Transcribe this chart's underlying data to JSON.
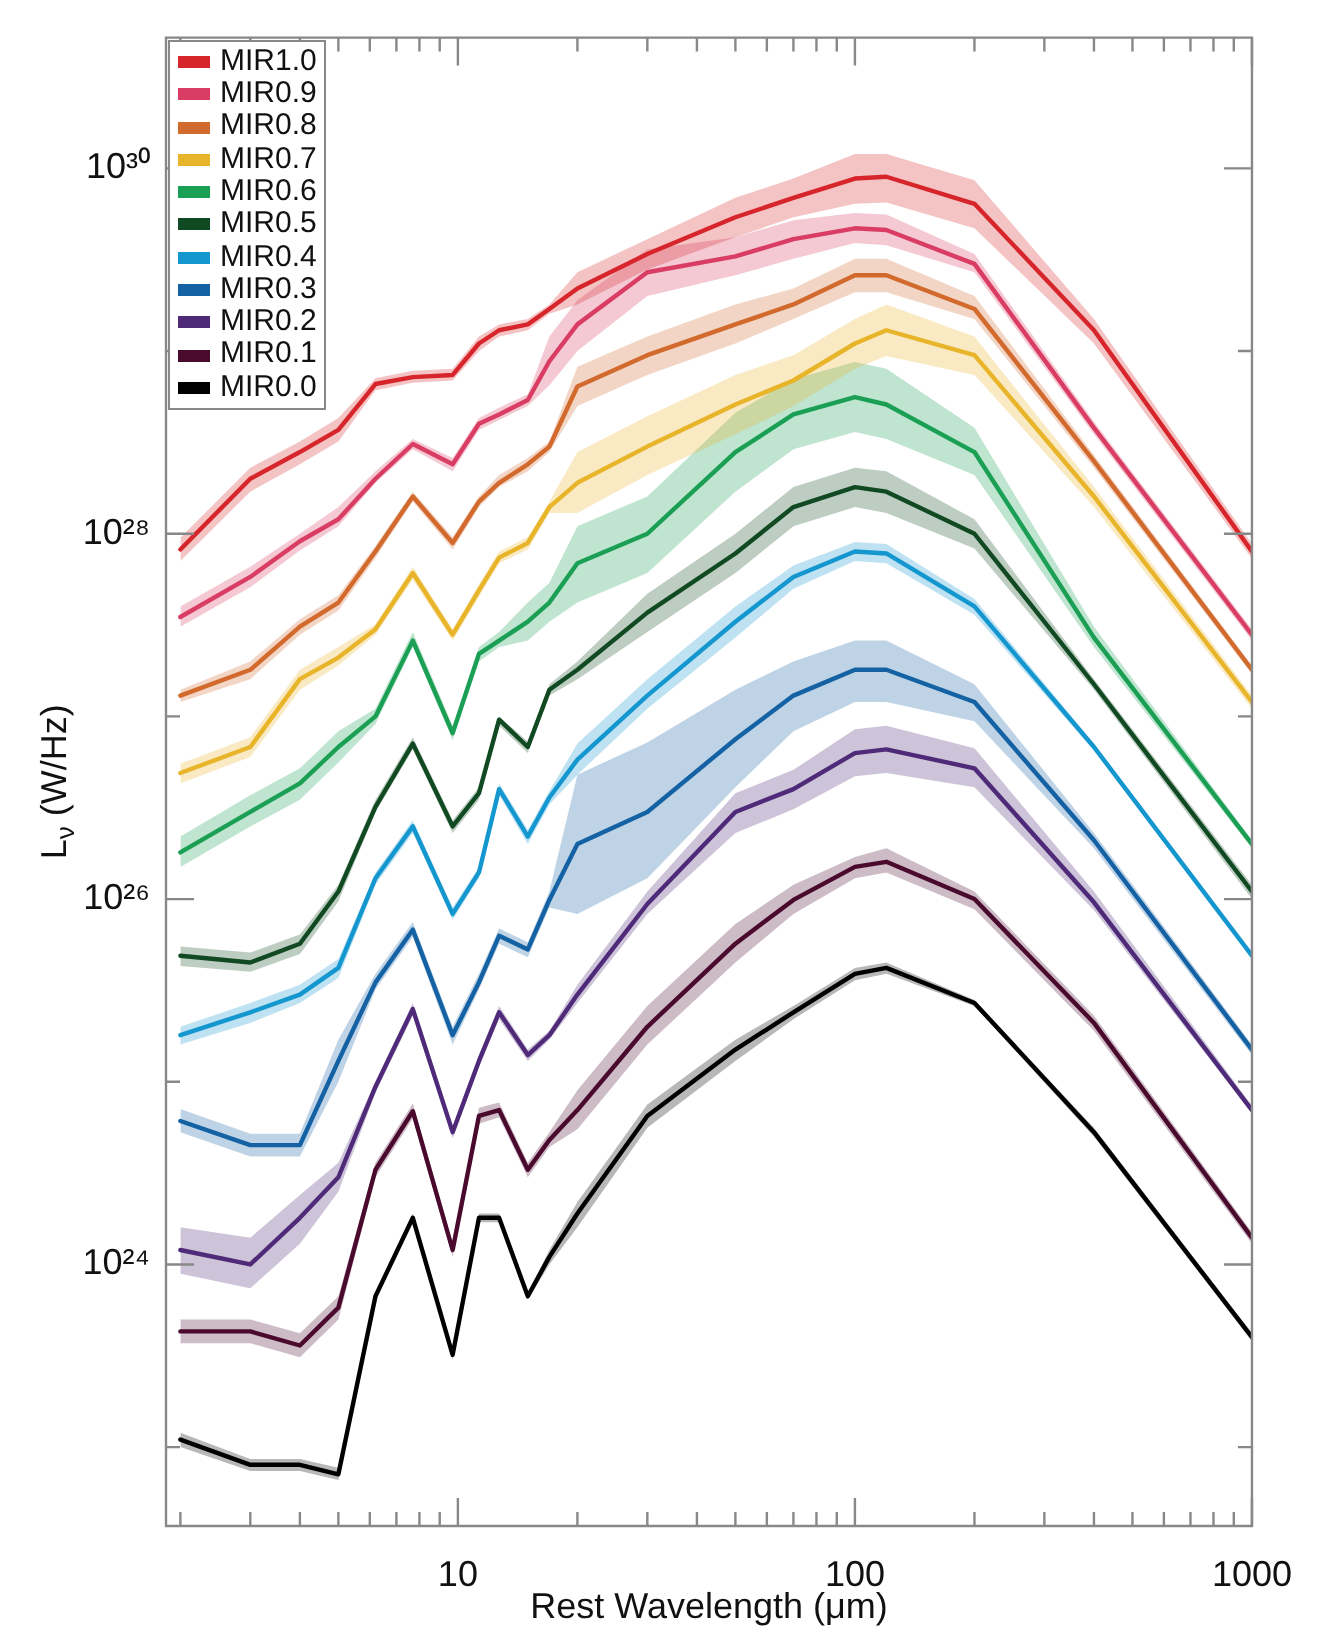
{
  "chart_data": {
    "type": "line",
    "xlabel": "Rest Wavelength (μm)",
    "ylabel": "L$_{ν}$ (W/Hz)",
    "log": "xy",
    "legend": "top left",
    "xlim": [
      1.84,
      1000
    ],
    "ylim": [
      3.7e+22,
      5.2e+30
    ],
    "xticks": [
      {
        "value": 2,
        "label": null
      },
      {
        "value": 3,
        "label": null
      },
      {
        "value": 4,
        "label": null
      },
      {
        "value": 5,
        "label": null
      },
      {
        "value": 6,
        "label": null
      },
      {
        "value": 7,
        "label": null
      },
      {
        "value": 8,
        "label": null
      },
      {
        "value": 9,
        "label": null
      },
      10,
      {
        "value": 20,
        "label": null
      },
      {
        "value": 30,
        "label": null
      },
      {
        "value": 40,
        "label": null
      },
      {
        "value": 50,
        "label": null
      },
      {
        "value": 60,
        "label": null
      },
      {
        "value": 70,
        "label": null
      },
      {
        "value": 80,
        "label": null
      },
      {
        "value": 90,
        "label": null
      },
      100,
      {
        "value": 200,
        "label": null
      },
      {
        "value": 300,
        "label": null
      },
      {
        "value": 400,
        "label": null
      },
      {
        "value": 500,
        "label": null
      },
      {
        "value": 600,
        "label": null
      },
      {
        "value": 700,
        "label": null
      },
      {
        "value": 800,
        "label": null
      },
      {
        "value": 900,
        "label": null
      },
      1000
    ],
    "yticks": [
      {
        "value": 1e+23,
        "label": null
      },
      {
        "value": 1e+24,
        "label": "10²⁴"
      },
      {
        "value": 1e+25,
        "label": null
      },
      {
        "value": 1e+26,
        "label": "10²⁶"
      },
      {
        "value": 1e+27,
        "label": null
      },
      {
        "value": 1e+28,
        "label": "10²⁸"
      },
      {
        "value": 1e+29,
        "label": null
      },
      {
        "value": 1e+30,
        "label": "10³⁰"
      }
    ],
    "x": [
      2,
      3,
      4,
      5,
      6.2,
      7.7,
      9.7,
      11.3,
      12.7,
      15,
      17,
      20,
      30,
      50,
      70,
      100,
      120,
      200,
      400,
      1000
    ],
    "series": [
      {
        "name": "MIR1.0",
        "color": "#d7262b",
        "values": [
          8.2e+27,
          2e+28,
          2.8e+28,
          3.7e+28,
          6.6e+28,
          7.2e+28,
          7.4e+28,
          1.1e+29,
          1.3e+29,
          1.4e+29,
          1.7e+29,
          2.2e+29,
          3.4e+29,
          5.4e+29,
          6.9e+29,
          8.8e+29,
          9e+29,
          6.4e+29,
          1.3e+29,
          8e+27
        ],
        "lower": [
          7.1e+27,
          1.7e+28,
          2.4e+28,
          3.2e+28,
          6.1e+28,
          6.7e+28,
          6.9e+28,
          1e+29,
          1.2e+29,
          1.3e+29,
          1.6e+29,
          1.8e+29,
          2.8e+29,
          4.2e+29,
          5.4e+29,
          6.4e+29,
          6.5e+29,
          4.7e+29,
          1.1e+29,
          7.3e+27
        ],
        "upper": [
          9.5e+27,
          2.3e+28,
          3.2e+28,
          4.3e+28,
          7.1e+28,
          7.8e+28,
          8e+28,
          1.2e+29,
          1.4e+29,
          1.5e+29,
          1.8e+29,
          2.7e+29,
          4.1e+29,
          6.9e+29,
          8.8e+29,
          1.2e+30,
          1.2e+30,
          8.6e+29,
          1.5e+29,
          8.8e+27
        ]
      },
      {
        "name": "MIR0.9",
        "color": "#d93d63",
        "values": [
          3.5e+27,
          5.8e+27,
          9.1e+27,
          1.2e+28,
          2e+28,
          3.1e+28,
          2.4e+28,
          4e+28,
          4.5e+28,
          5.4e+28,
          8.8e+28,
          1.4e+29,
          2.7e+29,
          3.3e+29,
          4.1e+29,
          4.7e+29,
          4.6e+29,
          3e+29,
          3.8e+28,
          2.8e+27
        ],
        "lower": [
          3.1e+27,
          5.1e+27,
          8.1e+27,
          1.1e+28,
          1.9e+28,
          2.9e+28,
          2.2e+28,
          3.7e+28,
          4.2e+28,
          5e+28,
          6.5e+28,
          1e+29,
          2e+29,
          2.6e+29,
          3.2e+29,
          3.9e+29,
          3.8e+29,
          2.7e+29,
          3.5e+28,
          2.6e+27
        ],
        "upper": [
          4e+27,
          6.6e+27,
          1e+28,
          1.4e+28,
          2.2e+28,
          3.3e+28,
          2.6e+28,
          4.3e+28,
          4.9e+28,
          5.8e+28,
          1.2e+29,
          1.9e+29,
          3.6e+29,
          4.2e+29,
          5.2e+29,
          5.7e+29,
          5.6e+29,
          3.4e+29,
          4.1e+28,
          3e+27
        ]
      },
      {
        "name": "MIR0.8",
        "color": "#d2692d",
        "values": [
          1.3e+27,
          1.8e+27,
          3.1e+27,
          4.2e+27,
          8e+27,
          1.6e+28,
          8.9e+27,
          1.5e+28,
          1.9e+28,
          2.4e+28,
          3e+28,
          6.4e+28,
          9.5e+28,
          1.4e+29,
          1.8e+29,
          2.6e+29,
          2.6e+29,
          1.7e+29,
          2.5e+28,
          1.8e+27
        ],
        "lower": [
          1.2e+27,
          1.6e+27,
          2.8e+27,
          3.8e+27,
          7.4e+27,
          1.5e+28,
          8.2e+27,
          1.4e+28,
          1.8e+28,
          2.2e+28,
          2.8e+28,
          5e+28,
          7.4e+28,
          1.1e+29,
          1.5e+29,
          2.1e+29,
          2.1e+29,
          1.5e+29,
          2.3e+28,
          1.7e+27
        ],
        "upper": [
          1.4e+27,
          2e+27,
          3.4e+27,
          4.6e+27,
          8.6e+27,
          1.7e+28,
          9.6e+27,
          1.6e+28,
          2.1e+28,
          2.6e+28,
          3.2e+28,
          8.2e+28,
          1.2e+29,
          1.8e+29,
          2.2e+29,
          3.2e+29,
          3.2e+29,
          2e+29,
          2.7e+28,
          1.9e+27
        ]
      },
      {
        "name": "MIR0.7",
        "color": "#e8b52a",
        "values": [
          4.9e+26,
          6.8e+26,
          1.6e+27,
          2.1e+27,
          3e+27,
          6.1e+27,
          2.8e+27,
          4.9e+27,
          7.4e+27,
          8.9e+27,
          1.4e+28,
          1.9e+28,
          3e+28,
          5.1e+28,
          6.9e+28,
          1.1e+29,
          1.3e+29,
          9.5e+28,
          1.6e+28,
          1.2e+27
        ],
        "lower": [
          4.3e+26,
          6e+26,
          1.4e+27,
          1.9e+27,
          2.8e+27,
          5.6e+27,
          2.6e+27,
          4.5e+27,
          6.9e+27,
          8.2e+27,
          1.3e+28,
          1.3e+28,
          2.1e+28,
          3.5e+28,
          5e+28,
          8e+28,
          9.4e+28,
          7.4e+28,
          1.4e+28,
          1.1e+27
        ],
        "upper": [
          5.5e+26,
          7.7e+26,
          1.8e+27,
          2.4e+27,
          3.2e+27,
          6.6e+27,
          3e+27,
          5.3e+27,
          8e+27,
          9.6e+27,
          1.5e+28,
          2.8e+28,
          4.4e+28,
          7.4e+28,
          9.5e+28,
          1.5e+29,
          1.8e+29,
          1.2e+29,
          1.8e+28,
          1.3e+27
        ]
      },
      {
        "name": "MIR0.6",
        "color": "#1a9f54",
        "values": [
          1.8e+26,
          3e+26,
          4.3e+26,
          6.8e+26,
          1e+27,
          2.6e+27,
          8.1e+26,
          2.2e+27,
          2.6e+27,
          3.3e+27,
          4.2e+27,
          6.9e+27,
          1e+28,
          2.8e+28,
          4.5e+28,
          5.6e+28,
          5.1e+28,
          2.8e+28,
          2.7e+27,
          2e+26
        ],
        "lower": [
          1.5e+26,
          2.5e+26,
          3.5e+26,
          5.6e+26,
          9.1e+26,
          2.4e+27,
          7.4e+26,
          2e+27,
          2.4e+27,
          2.6e+27,
          3.3e+27,
          4.2e+27,
          6.1e+27,
          1.7e+28,
          2.9e+28,
          3.6e+28,
          3.3e+28,
          2.1e+28,
          2.4e+27,
          1.9e+26
        ],
        "upper": [
          2.2e+26,
          3.7e+26,
          5.2e+26,
          8.3e+26,
          1.1e+27,
          2.9e+27,
          8.9e+26,
          2.4e+27,
          2.9e+27,
          4.2e+27,
          5.4e+27,
          1.1e+28,
          1.6e+28,
          4.6e+28,
          7e+28,
          8.7e+28,
          8e+28,
          3.8e+28,
          3.1e+27,
          2.1e+26
        ]
      },
      {
        "name": "MIR0.5",
        "color": "#114a22",
        "values": [
          4.9e+25,
          4.5e+25,
          5.7e+25,
          1.1e+26,
          3.2e+26,
          7.1e+26,
          2.5e+26,
          3.8e+26,
          9.6e+26,
          6.8e+26,
          1.4e+27,
          1.8e+27,
          3.7e+27,
          7.8e+27,
          1.4e+28,
          1.8e+28,
          1.7e+28,
          1e+28,
          1.5e+27,
          1.1e+26
        ],
        "lower": [
          4.3e+25,
          4e+25,
          5e+25,
          9.7e+25,
          3e+26,
          6.6e+26,
          2.3e+26,
          3.5e+26,
          8.9e+26,
          6.3e+26,
          1.3e+27,
          1.6e+27,
          2.9e+27,
          6.1e+27,
          1.1e+28,
          1.4e+28,
          1.3e+28,
          8.3e+27,
          1.4e+27,
          1e+26
        ],
        "upper": [
          5.5e+25,
          5.1e+25,
          6.4e+25,
          1.2e+26,
          3.5e+26,
          7.7e+26,
          2.7e+26,
          4.1e+26,
          1e+27,
          7.3e+26,
          1.5e+27,
          2e+27,
          4.7e+27,
          1e+28,
          1.8e+28,
          2.3e+28,
          2.2e+28,
          1.2e+28,
          1.6e+27,
          1.2e+26
        ]
      },
      {
        "name": "MIR0.4",
        "color": "#1496cf",
        "values": [
          1.8e+25,
          2.4e+25,
          3e+25,
          4.2e+25,
          1.3e+26,
          2.5e+26,
          8.3e+25,
          1.4e+26,
          4e+26,
          2.2e+26,
          3.6e+26,
          5.8e+26,
          1.3e+27,
          3.3e+27,
          5.8e+27,
          8e+27,
          7.8e+27,
          4e+27,
          6.8e+26,
          4.9e+25
        ],
        "lower": [
          1.6e+25,
          2.1e+25,
          2.7e+25,
          3.7e+25,
          1.2e+26,
          2.3e+26,
          7.7e+25,
          1.3e+26,
          3.7e+26,
          2e+26,
          3.3e+26,
          4.8e+26,
          1.1e+27,
          2.7e+27,
          5e+27,
          7.1e+27,
          6.9e+27,
          3.6e+27,
          6.5e+26,
          4.7e+25
        ],
        "upper": [
          2e+25,
          2.7e+25,
          3.4e+25,
          4.7e+25,
          1.4e+26,
          2.7e+26,
          9e+25,
          1.5e+26,
          4.3e+26,
          2.4e+26,
          3.9e+26,
          7.1e+26,
          1.6e+27,
          4e+27,
          6.7e+27,
          9e+27,
          8.8e+27,
          4.4e+27,
          7.1e+26,
          5.1e+25
        ]
      },
      {
        "name": "MIR0.3",
        "color": "#1461a3",
        "values": [
          6.1e+24,
          4.5e+24,
          4.5e+24,
          1.3e+25,
          3.5e+25,
          6.8e+25,
          1.8e+25,
          3.5e+25,
          6.3e+25,
          5.3e+25,
          9.9e+25,
          2e+26,
          3e+26,
          7.5e+26,
          1.3e+27,
          1.8e+27,
          1.8e+27,
          1.2e+27,
          2.1e+26,
          1.5e+25
        ],
        "lower": [
          5.3e+24,
          3.9e+24,
          3.9e+24,
          1e+25,
          3.2e+25,
          6.2e+25,
          1.6e+25,
          3.2e+25,
          5.7e+25,
          4.8e+25,
          9e+25,
          8.3e+25,
          1.3e+26,
          4.1e+26,
          8.3e+26,
          1.2e+27,
          1.2e+27,
          9.4e+26,
          1.9e+26,
          1.4e+25
        ],
        "upper": [
          7.1e+24,
          5.2e+24,
          5.2e+24,
          1.7e+25,
          3.9e+25,
          7.5e+25,
          2e+25,
          3.9e+25,
          6.9e+25,
          5.8e+25,
          1.1e+26,
          4.8e+26,
          7.2e+26,
          1.4e+27,
          2e+27,
          2.6e+27,
          2.6e+27,
          1.5e+27,
          2.3e+26,
          1.6e+25
        ]
      },
      {
        "name": "MIR0.2",
        "color": "#4f2a78",
        "values": [
          1.2e+24,
          1e+24,
          1.8e+24,
          3e+24,
          9.4e+24,
          2.5e+25,
          5.3e+24,
          1.3e+25,
          2.4e+25,
          1.4e+25,
          1.8e+25,
          3e+25,
          9.4e+25,
          3e+26,
          4e+26,
          6.3e+26,
          6.6e+26,
          5.2e+26,
          9.6e+25,
          7e+24
        ],
        "lower": [
          8.9e+23,
          7.4e+23,
          1.3e+24,
          2.5e+24,
          8.7e+24,
          2.3e+25,
          4.9e+24,
          1.2e+25,
          2.2e+25,
          1.3e+25,
          1.7e+25,
          2.7e+25,
          8.3e+25,
          2.3e+26,
          3.1e+26,
          4.7e+26,
          4.9e+26,
          4.1e+26,
          8.7e+25,
          6.7e+24
        ],
        "upper": [
          1.6e+24,
          1.4e+24,
          2.4e+24,
          3.6e+24,
          1e+25,
          2.7e+25,
          5.7e+24,
          1.4e+25,
          2.6e+25,
          1.5e+25,
          1.9e+25,
          3.4e+25,
          1.1e+26,
          3.8e+26,
          5.1e+26,
          8.5e+26,
          8.9e+26,
          6.7e+26,
          1.1e+26,
          7.4e+24
        ]
      },
      {
        "name": "MIR0.1",
        "color": "#4a0a2e",
        "values": [
          4.3e+23,
          4.3e+23,
          3.6e+23,
          5.8e+23,
          3.3e+24,
          6.9e+24,
          1.2e+24,
          6.5e+24,
          7e+24,
          3.3e+24,
          4.8e+24,
          7e+24,
          2e+25,
          5.7e+25,
          9.9e+25,
          1.5e+26,
          1.6e+26,
          1e+26,
          2.1e+25,
          1.4e+24
        ],
        "lower": [
          3.7e+23,
          3.7e+23,
          3.1e+23,
          5e+23,
          3e+24,
          6.3e+24,
          1.1e+24,
          5.9e+24,
          6.4e+24,
          3e+24,
          4.4e+24,
          5.5e+24,
          1.6e+25,
          4.5e+25,
          8.3e+25,
          1.3e+26,
          1.4e+26,
          8.8e+25,
          1.9e+25,
          1.3e+24
        ],
        "upper": [
          5e+23,
          5e+23,
          4.2e+23,
          6.7e+23,
          3.6e+24,
          7.6e+24,
          1.3e+24,
          7.2e+24,
          7.7e+24,
          3.6e+24,
          5.3e+24,
          9e+24,
          2.6e+25,
          7.3e+25,
          1.2e+26,
          1.7e+26,
          1.9e+26,
          1.1e+26,
          2.3e+25,
          1.5e+24
        ]
      },
      {
        "name": "MIR0.0",
        "color": "#000000",
        "values": [
          1.1e+23,
          8e+22,
          8e+22,
          7.1e+22,
          6.7e+23,
          1.8e+24,
          3.2e+23,
          1.8e+24,
          1.8e+24,
          6.7e+23,
          1.1e+24,
          1.9e+24,
          6.5e+24,
          1.5e+25,
          2.4e+25,
          3.9e+25,
          4.2e+25,
          2.7e+25,
          5.3e+24,
          4e+23
        ],
        "lower": [
          1e+23,
          7.4e+22,
          7.4e+22,
          6.6e+22,
          6.4e+23,
          1.7e+24,
          3e+23,
          1.7e+24,
          1.7e+24,
          6.4e+23,
          1e+24,
          1.6e+24,
          5.6e+24,
          1.3e+25,
          2.2e+25,
          3.6e+25,
          3.9e+25,
          2.6e+25,
          5e+24,
          3.8e+23
        ],
        "upper": [
          1.2e+23,
          8.6e+22,
          8.6e+22,
          7.7e+22,
          7e+23,
          1.9e+24,
          3.4e+23,
          1.9e+24,
          1.9e+24,
          7e+23,
          1.2e+24,
          2.2e+24,
          7.5e+24,
          1.7e+25,
          2.6e+25,
          4.2e+25,
          4.5e+25,
          2.8e+25,
          5.6e+24,
          4.2e+23
        ]
      }
    ]
  }
}
